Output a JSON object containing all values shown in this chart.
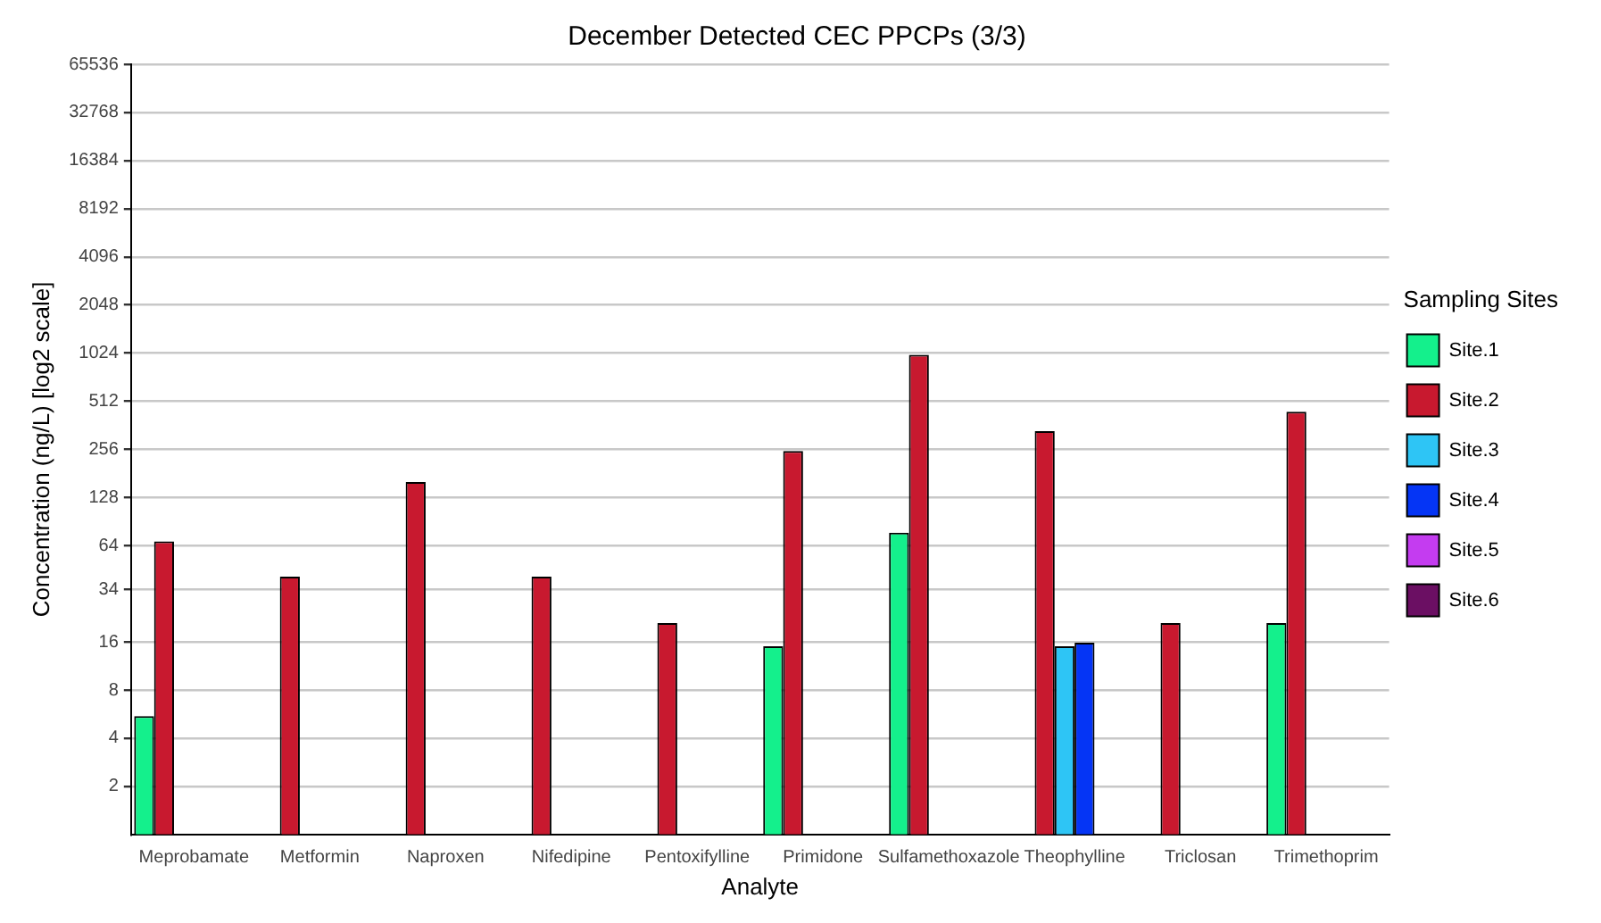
{
  "chart_data": {
    "type": "bar",
    "title": "December Detected CEC PPCPs (3/3)",
    "xlabel": "Analyte",
    "ylabel": "Concentration (ng/L) [log2 scale]",
    "legend_title": "Sampling Sites",
    "categories": [
      "Meprobamate",
      "Metformin",
      "Naproxen",
      "Nifedipine",
      "Pentoxifylline",
      "Primidone",
      "Sulfamethoxazole",
      "Theophylline",
      "Triclosan",
      "Trimethoprim"
    ],
    "series": [
      {
        "name": "Site.1",
        "color": "#14f08c",
        "values": [
          5.5,
          null,
          null,
          null,
          null,
          15,
          77,
          null,
          null,
          21
        ]
      },
      {
        "name": "Site.2",
        "color": "#c8192f",
        "values": [
          68,
          41,
          160,
          41,
          21,
          250,
          1000,
          333,
          21,
          440
        ]
      },
      {
        "name": "Site.3",
        "color": "#2ec5f5",
        "values": [
          null,
          null,
          null,
          null,
          null,
          null,
          null,
          15,
          null,
          null
        ]
      },
      {
        "name": "Site.4",
        "color": "#0535f5",
        "values": [
          null,
          null,
          null,
          null,
          null,
          null,
          null,
          15.8,
          null,
          null
        ]
      },
      {
        "name": "Site.5",
        "color": "#c43cf0",
        "values": [
          null,
          null,
          null,
          null,
          null,
          null,
          null,
          null,
          null,
          null
        ]
      },
      {
        "name": "Site.6",
        "color": "#6b0f63",
        "values": [
          null,
          null,
          null,
          null,
          null,
          null,
          null,
          null,
          null,
          null
        ]
      }
    ],
    "log": "y",
    "ylim": [
      1,
      65536
    ],
    "yticks": [
      2,
      4,
      8,
      16,
      34,
      64,
      128,
      256,
      512,
      1024,
      2048,
      4096,
      8192,
      16384,
      32768,
      65536
    ],
    "grid": "y",
    "legend": "right"
  }
}
